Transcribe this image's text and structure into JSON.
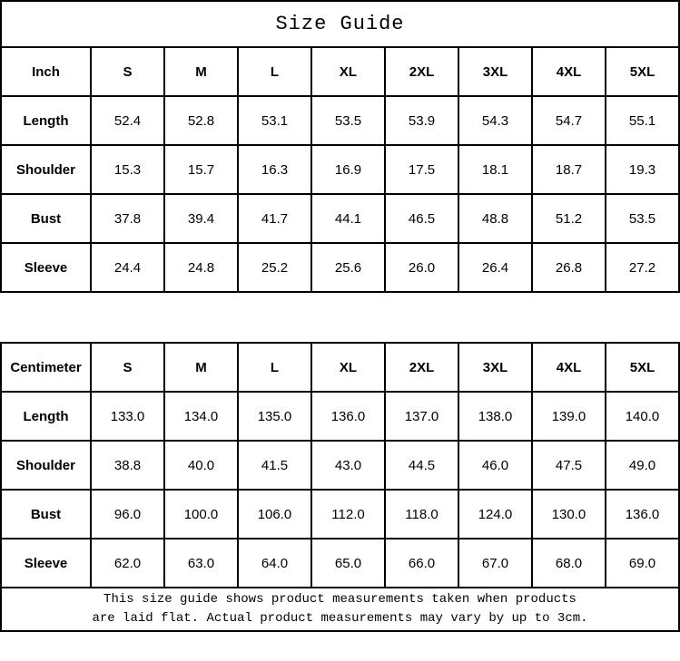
{
  "title": "Size Guide",
  "tables": [
    {
      "unit": "Inch",
      "sizes": [
        "S",
        "M",
        "L",
        "XL",
        "2XL",
        "3XL",
        "4XL",
        "5XL"
      ],
      "rows": [
        {
          "label": "Length",
          "values": [
            "52.4",
            "52.8",
            "53.1",
            "53.5",
            "53.9",
            "54.3",
            "54.7",
            "55.1"
          ]
        },
        {
          "label": "Shoulder",
          "values": [
            "15.3",
            "15.7",
            "16.3",
            "16.9",
            "17.5",
            "18.1",
            "18.7",
            "19.3"
          ]
        },
        {
          "label": "Bust",
          "values": [
            "37.8",
            "39.4",
            "41.7",
            "44.1",
            "46.5",
            "48.8",
            "51.2",
            "53.5"
          ]
        },
        {
          "label": "Sleeve",
          "values": [
            "24.4",
            "24.8",
            "25.2",
            "25.6",
            "26.0",
            "26.4",
            "26.8",
            "27.2"
          ]
        }
      ]
    },
    {
      "unit": "Centimeter",
      "sizes": [
        "S",
        "M",
        "L",
        "XL",
        "2XL",
        "3XL",
        "4XL",
        "5XL"
      ],
      "rows": [
        {
          "label": "Length",
          "values": [
            "133.0",
            "134.0",
            "135.0",
            "136.0",
            "137.0",
            "138.0",
            "139.0",
            "140.0"
          ]
        },
        {
          "label": "Shoulder",
          "values": [
            "38.8",
            "40.0",
            "41.5",
            "43.0",
            "44.5",
            "46.0",
            "47.5",
            "49.0"
          ]
        },
        {
          "label": "Bust",
          "values": [
            "96.0",
            "100.0",
            "106.0",
            "112.0",
            "118.0",
            "124.0",
            "130.0",
            "136.0"
          ]
        },
        {
          "label": "Sleeve",
          "values": [
            "62.0",
            "63.0",
            "64.0",
            "65.0",
            "66.0",
            "67.0",
            "68.0",
            "69.0"
          ]
        }
      ]
    }
  ],
  "footer": {
    "line1": "This size guide shows product measurements taken when products",
    "line2": "are laid flat. Actual product measurements may vary by up to 3cm."
  },
  "colors": {
    "border": "#000000",
    "background": "#ffffff",
    "text": "#000000"
  }
}
